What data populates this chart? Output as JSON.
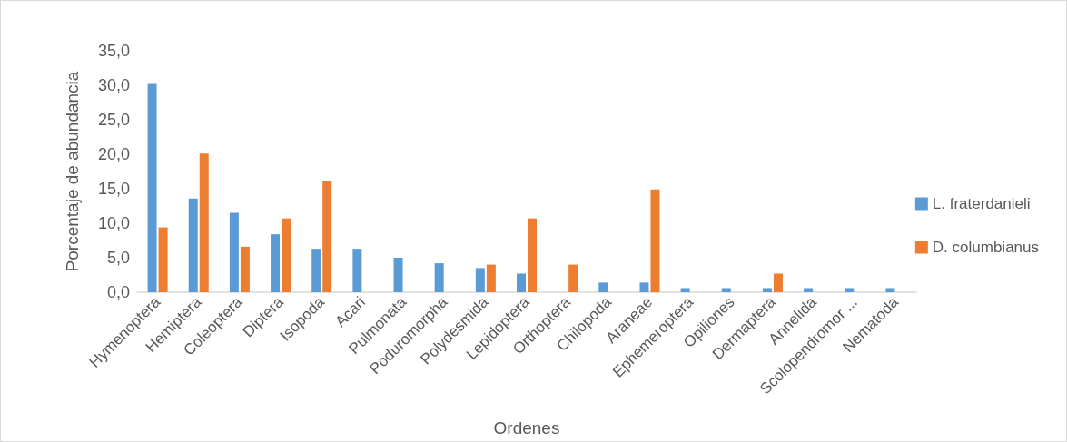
{
  "chart_data": {
    "type": "bar",
    "xlabel": "Ordenes",
    "ylabel": "Porcentaje de abundancia",
    "categories": [
      "Hymenoptera",
      "Hemiptera",
      "Coleoptera",
      "Diptera",
      "Isopoda",
      "Acari",
      "Pulmonata",
      "Poduromorpha",
      "Polydesmida",
      "Lepidoptera",
      "Orthoptera",
      "Chilopoda",
      "Araneae",
      "Ephemeroptera",
      "Opiliones",
      "Dermaptera",
      "Annelida",
      "Scolopendromor ...",
      "Nematoda"
    ],
    "series": [
      {
        "name": "L. fraterdanieli",
        "color": "#5b9bd5",
        "values": [
          30.2,
          13.6,
          11.5,
          8.4,
          6.3,
          6.3,
          5.0,
          4.2,
          3.5,
          2.7,
          null,
          1.4,
          1.4,
          0.6,
          0.6,
          0.6,
          0.6,
          0.6,
          0.6
        ]
      },
      {
        "name": "D. columbianus",
        "color": "#ed7d31",
        "values": [
          9.4,
          20.1,
          6.6,
          10.7,
          16.2,
          null,
          null,
          null,
          4.0,
          10.7,
          4.0,
          null,
          14.9,
          null,
          null,
          2.7,
          null,
          null,
          null
        ]
      }
    ],
    "ylim": [
      0,
      35
    ],
    "yticks": [
      {
        "value": 0,
        "label": "0,0"
      },
      {
        "value": 5,
        "label": "5,0"
      },
      {
        "value": 10,
        "label": "10,0"
      },
      {
        "value": 15,
        "label": "15,0"
      },
      {
        "value": 20,
        "label": "20,0"
      },
      {
        "value": 25,
        "label": "25,0"
      },
      {
        "value": 30,
        "label": "30,0"
      },
      {
        "value": 35,
        "label": "35,0"
      }
    ],
    "grid": false,
    "legend": "right"
  }
}
